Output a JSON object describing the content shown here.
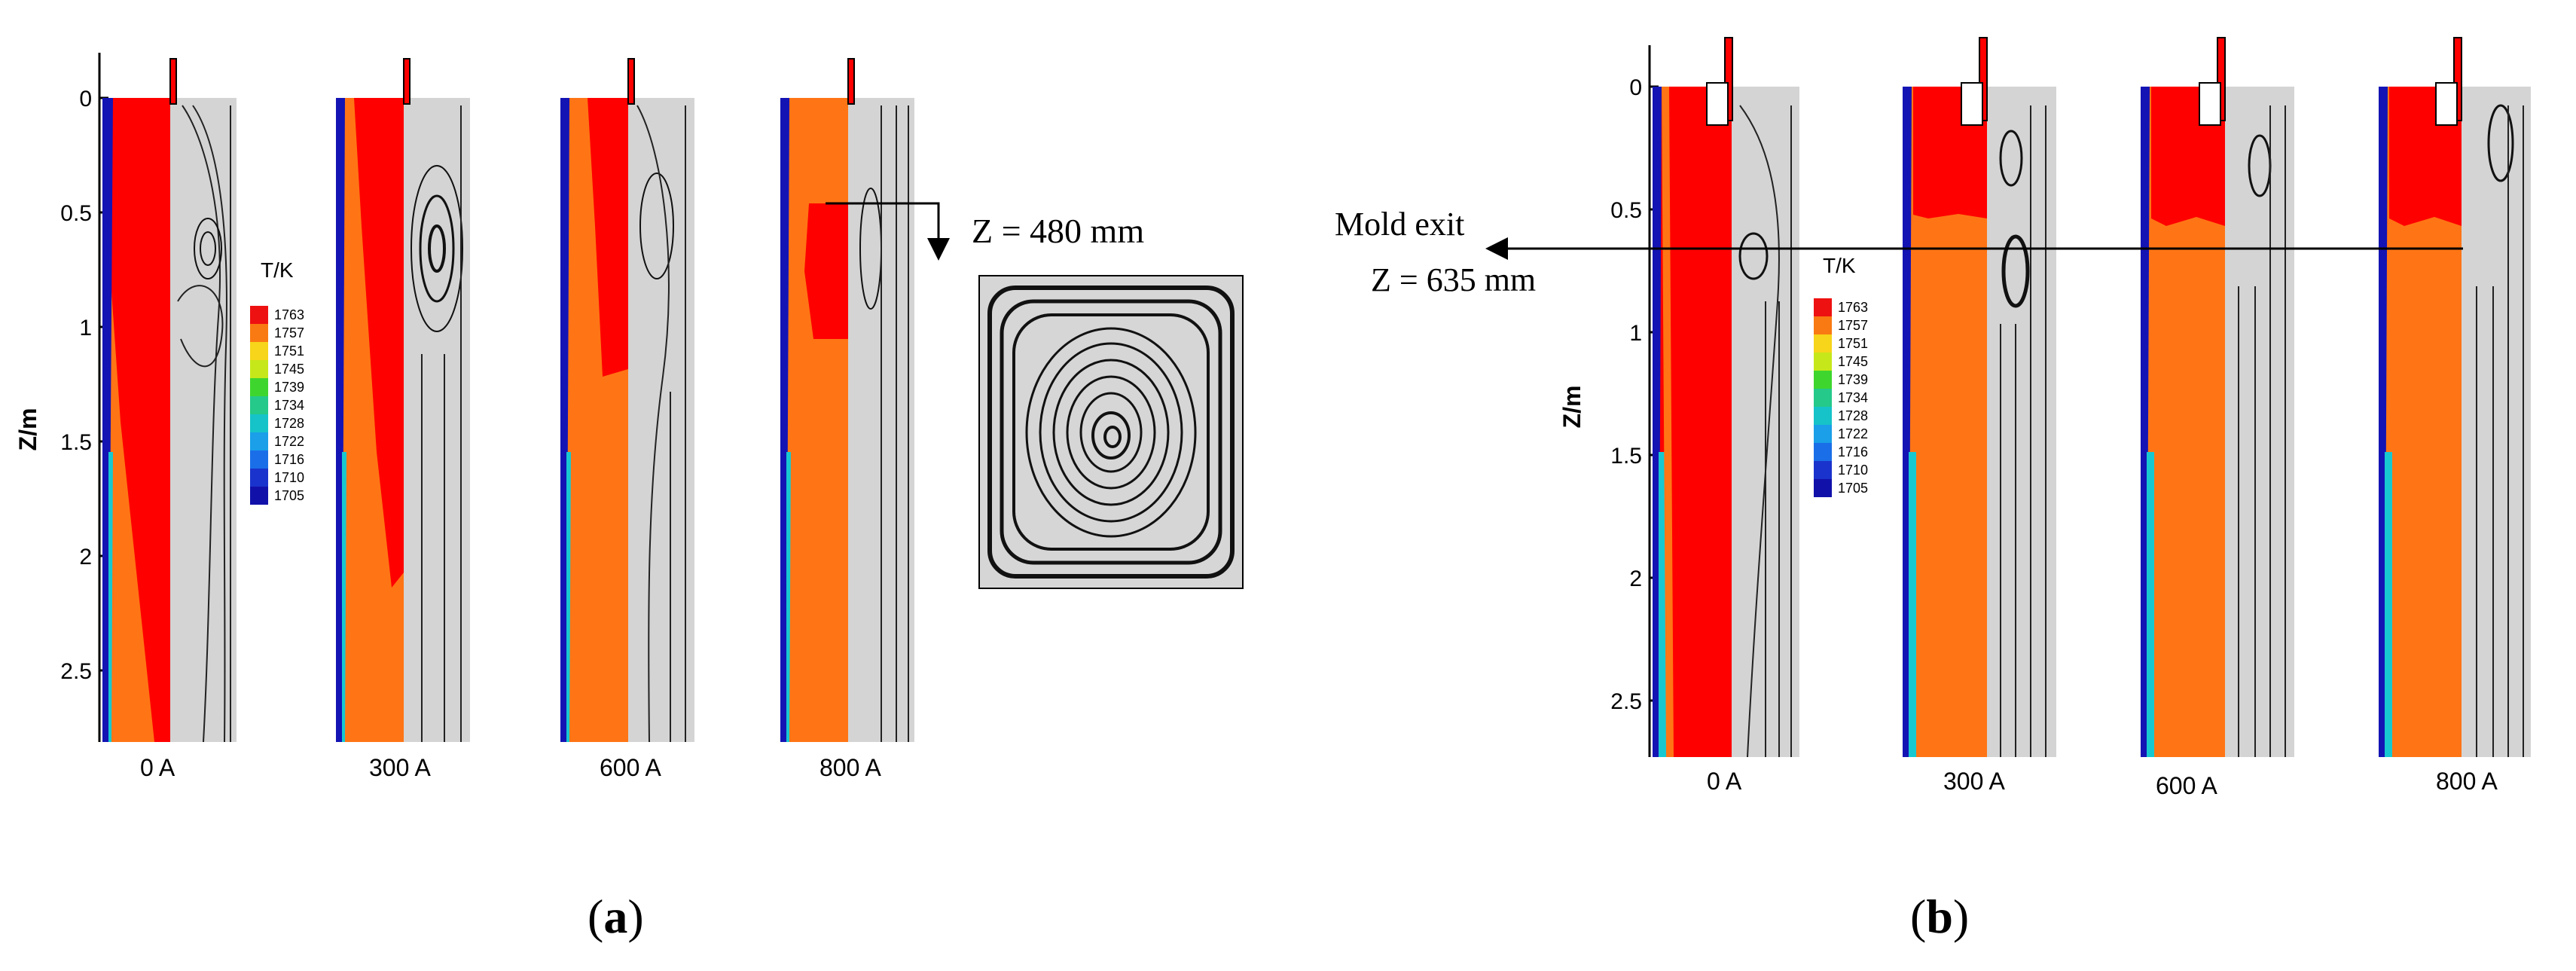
{
  "colorbar": {
    "title": "T/K",
    "levels": [
      "1763",
      "1757",
      "1751",
      "1745",
      "1739",
      "1734",
      "1728",
      "1722",
      "1716",
      "1710",
      "1705"
    ],
    "colors": [
      "#ee1111",
      "#f97a12",
      "#f6d51a",
      "#c6e81a",
      "#3ed62e",
      "#25c98a",
      "#16c3c9",
      "#1a9fe8",
      "#1a6fe8",
      "#1a33cc",
      "#1111aa"
    ]
  },
  "colors": {
    "hot": "#ff0000",
    "warm": "#ff7515",
    "cold": "#1414b4",
    "flow_bg": "#d4d4d4",
    "streamline": "#111111"
  },
  "panel_a": {
    "caption": "a",
    "z_axis_label": "Z/m",
    "z_ticks": [
      "0",
      "0.5",
      "1",
      "1.5",
      "2",
      "2.5"
    ],
    "z_range": [
      0,
      2.75
    ],
    "currents": [
      "0 A",
      "300 A",
      "600 A",
      "800 A"
    ],
    "hot_region_depth_m": [
      2.75,
      2.05,
      1.2,
      1.05
    ],
    "annotation": "Z = 480 mm",
    "cross_section": "horizontal streamline cross-section (single vortex)"
  },
  "panel_b": {
    "caption": "b",
    "z_axis_label": "Z/m",
    "z_ticks": [
      "0",
      "0.5",
      "1",
      "1.5",
      "2",
      "2.5"
    ],
    "z_range": [
      0,
      2.75
    ],
    "currents": [
      "0 A",
      "300 A",
      "600 A",
      "800 A"
    ],
    "hot_region_depth_m": [
      2.75,
      0.55,
      0.55,
      0.55
    ],
    "annotation_line1": "Mold exit",
    "annotation_line2": "Z = 635 mm"
  }
}
